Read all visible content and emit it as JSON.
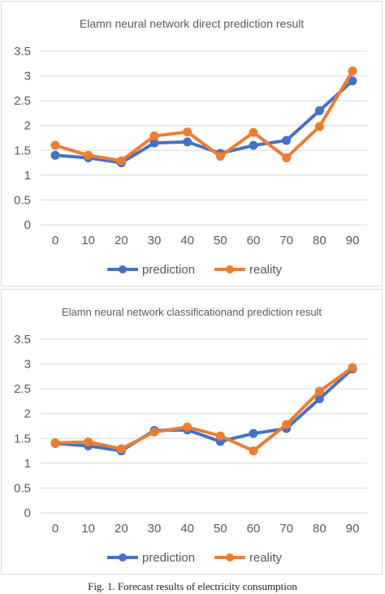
{
  "colors": {
    "prediction": "#4472c4",
    "reality": "#ed7d31",
    "grid": "#d9d9d9",
    "text": "#595959"
  },
  "caption": "Fig. 1. Forecast results of electricity consumption",
  "chart_data": [
    {
      "type": "line",
      "title": "Elamn  neural network direct prediction result",
      "xlabel": "",
      "ylabel": "",
      "x": [
        0,
        10,
        20,
        30,
        40,
        50,
        60,
        70,
        80,
        90
      ],
      "ylim": [
        0,
        3.5
      ],
      "y_ticks": [
        "0",
        "0.5",
        "1",
        "1.5",
        "2",
        "2.5",
        "3",
        "3.5"
      ],
      "grid": true,
      "legend": "bottom",
      "series": [
        {
          "name": "prediction",
          "values": [
            1.4,
            1.35,
            1.25,
            1.65,
            1.67,
            1.44,
            1.6,
            1.7,
            2.3,
            2.9
          ]
        },
        {
          "name": "reality",
          "values": [
            1.6,
            1.4,
            1.29,
            1.79,
            1.87,
            1.38,
            1.86,
            1.35,
            1.98,
            3.1
          ]
        }
      ]
    },
    {
      "type": "line",
      "title": "Elamn  neural network classificationand prediction result",
      "xlabel": "",
      "ylabel": "",
      "x": [
        0,
        10,
        20,
        30,
        40,
        50,
        60,
        70,
        80,
        90
      ],
      "ylim": [
        0,
        3.5
      ],
      "y_ticks": [
        "0",
        "0.5",
        "1",
        "1.5",
        "2",
        "2.5",
        "3",
        "3.5"
      ],
      "grid": true,
      "legend": "bottom",
      "series": [
        {
          "name": "prediction",
          "values": [
            1.4,
            1.35,
            1.25,
            1.66,
            1.67,
            1.44,
            1.6,
            1.7,
            2.3,
            2.9
          ]
        },
        {
          "name": "reality",
          "values": [
            1.41,
            1.43,
            1.29,
            1.63,
            1.73,
            1.55,
            1.25,
            1.78,
            2.45,
            2.93
          ]
        }
      ]
    }
  ]
}
